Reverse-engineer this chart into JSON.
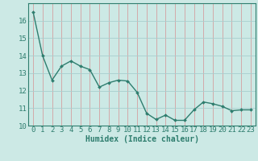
{
  "x": [
    0,
    1,
    2,
    3,
    4,
    5,
    6,
    7,
    8,
    9,
    10,
    11,
    12,
    13,
    14,
    15,
    16,
    17,
    18,
    19,
    20,
    21,
    22,
    23
  ],
  "y": [
    16.5,
    14.0,
    12.6,
    13.4,
    13.7,
    13.4,
    13.2,
    12.2,
    12.45,
    12.6,
    12.55,
    11.9,
    10.7,
    10.35,
    10.6,
    10.3,
    10.3,
    10.9,
    11.35,
    11.25,
    11.1,
    10.85,
    10.9,
    10.9
  ],
  "line_color": "#2e7d6e",
  "marker_color": "#2e7d6e",
  "bg_color": "#cce9e5",
  "grid_color_vertical": "#d4a0a0",
  "grid_color_horizontal": "#a8cece",
  "xlabel": "Humidex (Indice chaleur)",
  "ylim": [
    10,
    17
  ],
  "xlim": [
    -0.5,
    23.5
  ],
  "yticks": [
    10,
    11,
    12,
    13,
    14,
    15,
    16
  ],
  "xticks": [
    0,
    1,
    2,
    3,
    4,
    5,
    6,
    7,
    8,
    9,
    10,
    11,
    12,
    13,
    14,
    15,
    16,
    17,
    18,
    19,
    20,
    21,
    22,
    23
  ],
  "xlabel_fontsize": 7,
  "tick_fontsize": 6.5,
  "tick_color": "#2e7d6e"
}
